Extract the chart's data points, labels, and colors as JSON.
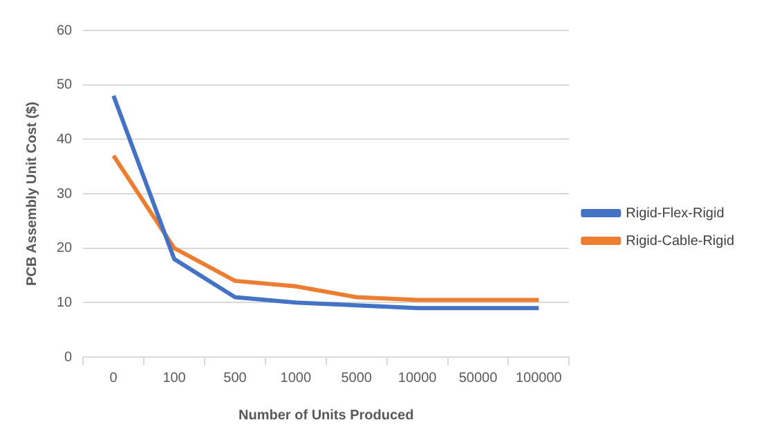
{
  "chart_data": {
    "type": "line",
    "xlabel": "Number of Units Produced",
    "ylabel": "PCB Assembly Unit Cost ($)",
    "categories": [
      "0",
      "100",
      "500",
      "1000",
      "5000",
      "10000",
      "50000",
      "100000"
    ],
    "series": [
      {
        "name": "Rigid-Flex-Rigid",
        "color": "#4472c4",
        "values": [
          48,
          18,
          11,
          10,
          9.5,
          9,
          9,
          9
        ]
      },
      {
        "name": "Rigid-Cable-Rigid",
        "color": "#ed7d31",
        "values": [
          37,
          20,
          14,
          13,
          11,
          10.5,
          10.5,
          10.5
        ]
      }
    ],
    "ylim": [
      0,
      60
    ],
    "yticks": [
      0,
      10,
      20,
      30,
      40,
      50,
      60
    ],
    "grid": "y",
    "legend": "right",
    "marker": "none"
  }
}
